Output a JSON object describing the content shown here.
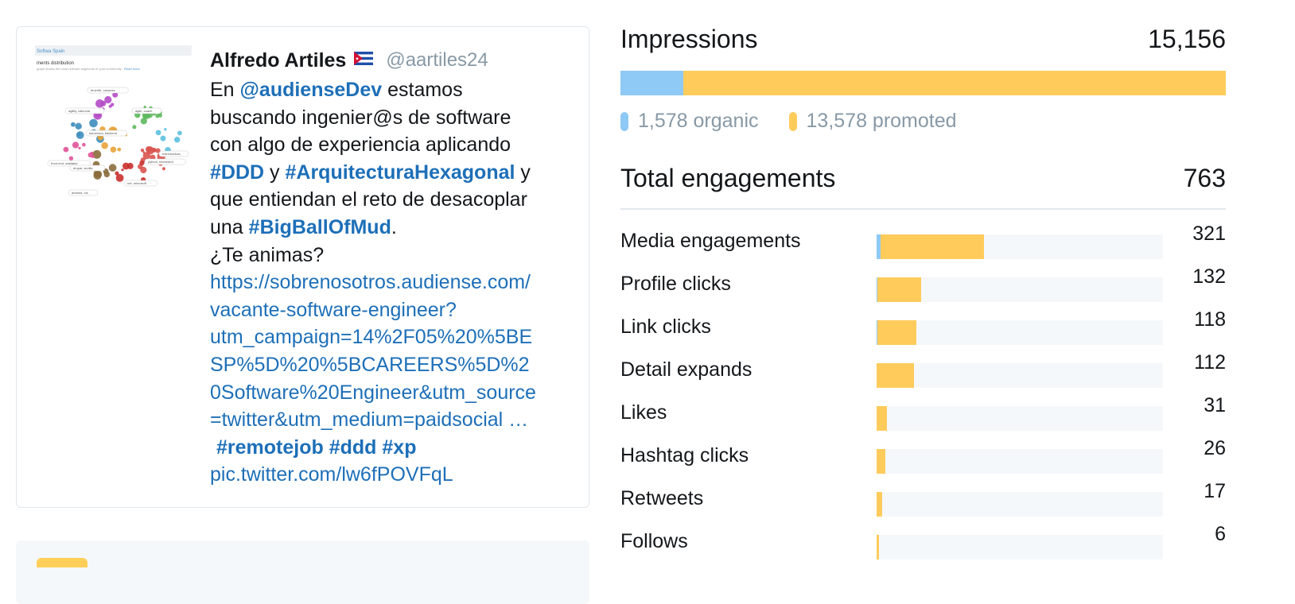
{
  "tweet": {
    "author_name": "Alfredo Artiles",
    "handle": "@aartiles24",
    "text_lines": [
      [
        {
          "t": "En ",
          "c": "text"
        },
        {
          "t": "@audienseDev",
          "c": "mention"
        },
        {
          "t": " estamos",
          "c": "text"
        }
      ],
      [
        {
          "t": "buscando ingenier@s de software",
          "c": "text"
        }
      ],
      [
        {
          "t": "con algo de experiencia aplicando",
          "c": "text"
        }
      ],
      [
        {
          "t": "#DDD",
          "c": "hashtag"
        },
        {
          "t": " y ",
          "c": "text"
        },
        {
          "t": "#ArquitecturaHexagonal",
          "c": "hashtag"
        },
        {
          "t": " y",
          "c": "text"
        }
      ],
      [
        {
          "t": "que entiendan el reto de desacoplar",
          "c": "text"
        }
      ],
      [
        {
          "t": "una ",
          "c": "text"
        },
        {
          "t": "#BigBallOfMud",
          "c": "hashtag"
        },
        {
          "t": ".",
          "c": "text"
        }
      ],
      [
        {
          "t": "¿Te animas?",
          "c": "text"
        }
      ],
      [
        {
          "t": "https://sobrenosotros.audiense.com/",
          "c": "url"
        }
      ],
      [
        {
          "t": "vacante-software-engineer?",
          "c": "url"
        }
      ],
      [
        {
          "t": "utm_campaign=14%2F05%20%5BE",
          "c": "url"
        }
      ],
      [
        {
          "t": "SP%5D%20%5BCAREERS%5D%2",
          "c": "url"
        }
      ],
      [
        {
          "t": "0Software%20Engineer&utm_source",
          "c": "url"
        }
      ],
      [
        {
          "t": "=twitter&utm_medium=paidsocial …",
          "c": "url"
        }
      ],
      [
        {
          "t": "#remotejob",
          "c": "hashtag"
        },
        {
          "t": " ",
          "c": "text"
        },
        {
          "t": "#ddd",
          "c": "hashtag"
        },
        {
          "t": " ",
          "c": "text"
        },
        {
          "t": "#xp",
          "c": "hashtag"
        }
      ],
      [
        {
          "t": "pic.twitter.com/lw6fPOVFqL",
          "c": "pic"
        }
      ]
    ],
    "thumbnail": {
      "header": "Softwa Spain",
      "title": "ments distribution",
      "subtitle": "graph shows the most relevant segments of your community.",
      "read_more": "Read more",
      "tags": [
        "tenerife, canaries",
        "agility, valencia",
        "agile, coach",
        "barcelona, backend",
        "front-end, adalaber",
        "drupal, sevilla",
        "extremadura,",
        "python, interested",
        "net, microsoft",
        "android, ios"
      ]
    }
  },
  "stats": {
    "impressions": {
      "label": "Impressions",
      "value": "15,156",
      "organic": 1578,
      "promoted": 13578
    },
    "legend": {
      "organic_label": "1,578 organic",
      "promoted_label": "13,578 promoted"
    },
    "engagements_total": {
      "label": "Total engagements",
      "value": "763"
    },
    "engagements": [
      {
        "label": "Media engagements",
        "value": "321",
        "organic": 11,
        "promoted": 310
      },
      {
        "label": "Profile clicks",
        "value": "132",
        "organic": 3,
        "promoted": 129
      },
      {
        "label": "Link clicks",
        "value": "118",
        "organic": 3,
        "promoted": 115
      },
      {
        "label": "Detail expands",
        "value": "112",
        "organic": 0,
        "promoted": 112
      },
      {
        "label": "Likes",
        "value": "31",
        "organic": 0,
        "promoted": 31
      },
      {
        "label": "Hashtag clicks",
        "value": "26",
        "organic": 0,
        "promoted": 26
      },
      {
        "label": "Retweets",
        "value": "17",
        "organic": 0,
        "promoted": 17
      },
      {
        "label": "Follows",
        "value": "6",
        "organic": 0,
        "promoted": 6
      }
    ],
    "engagement_scale_max": 855
  },
  "colors": {
    "organic": "#8fc9f5",
    "promoted": "#ffcc5c",
    "link": "#1d6fb8",
    "muted": "#8899a6"
  }
}
